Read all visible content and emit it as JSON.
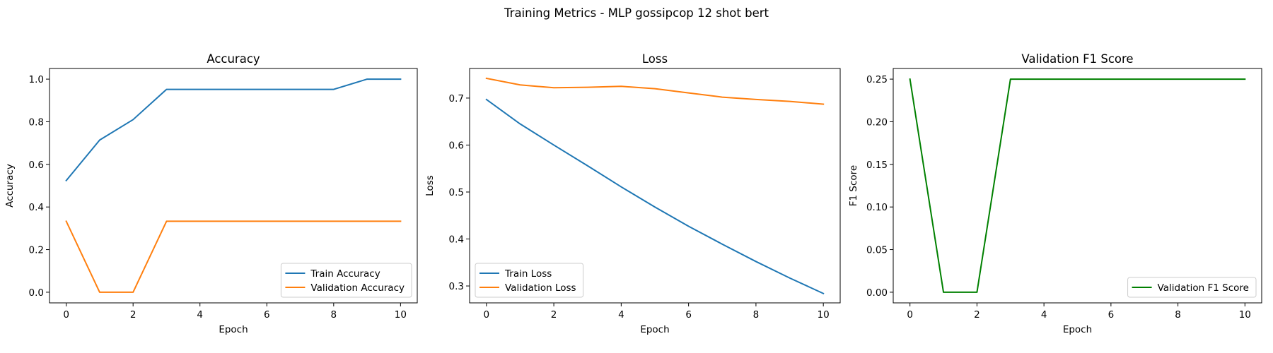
{
  "figure": {
    "title": "Training Metrics - MLP gossipcop 12 shot bert"
  },
  "chart_data": [
    {
      "type": "line",
      "title": "Accuracy",
      "xlabel": "Epoch",
      "ylabel": "Accuracy",
      "x": [
        0,
        1,
        2,
        3,
        4,
        5,
        6,
        7,
        8,
        9,
        10
      ],
      "xlim": [
        -0.5,
        10.5
      ],
      "ylim": [
        -0.05,
        1.05
      ],
      "xticks": [
        0,
        2,
        4,
        6,
        8,
        10
      ],
      "xtick_labels": [
        "0",
        "2",
        "4",
        "6",
        "8",
        "10"
      ],
      "yticks": [
        0.0,
        0.2,
        0.4,
        0.6,
        0.8,
        1.0
      ],
      "ytick_labels": [
        "0.0",
        "0.2",
        "0.4",
        "0.6",
        "0.8",
        "1.0"
      ],
      "legend_position": "bottom-right",
      "grid": false,
      "series": [
        {
          "name": "Train Accuracy",
          "color": "#1f77b4",
          "values": [
            0.524,
            0.714,
            0.81,
            0.952,
            0.952,
            0.952,
            0.952,
            0.952,
            0.952,
            1.0,
            1.0
          ]
        },
        {
          "name": "Validation Accuracy",
          "color": "#ff7f0e",
          "values": [
            0.333,
            0.0,
            0.0,
            0.333,
            0.333,
            0.333,
            0.333,
            0.333,
            0.333,
            0.333,
            0.333
          ]
        }
      ]
    },
    {
      "type": "line",
      "title": "Loss",
      "xlabel": "Epoch",
      "ylabel": "Loss",
      "x": [
        0,
        1,
        2,
        3,
        4,
        5,
        6,
        7,
        8,
        9,
        10
      ],
      "xlim": [
        -0.5,
        10.5
      ],
      "ylim": [
        0.264,
        0.763
      ],
      "xticks": [
        0,
        2,
        4,
        6,
        8,
        10
      ],
      "xtick_labels": [
        "0",
        "2",
        "4",
        "6",
        "8",
        "10"
      ],
      "yticks": [
        0.3,
        0.4,
        0.5,
        0.6,
        0.7
      ],
      "ytick_labels": [
        "0.3",
        "0.4",
        "0.5",
        "0.6",
        "0.7"
      ],
      "legend_position": "bottom-left",
      "grid": false,
      "series": [
        {
          "name": "Train Loss",
          "color": "#1f77b4",
          "values": [
            0.697,
            0.645,
            0.6,
            0.556,
            0.511,
            0.468,
            0.427,
            0.389,
            0.352,
            0.317,
            0.284
          ]
        },
        {
          "name": "Validation Loss",
          "color": "#ff7f0e",
          "values": [
            0.742,
            0.728,
            0.722,
            0.723,
            0.725,
            0.72,
            0.711,
            0.702,
            0.697,
            0.693,
            0.687
          ]
        }
      ]
    },
    {
      "type": "line",
      "title": "Validation F1 Score",
      "xlabel": "Epoch",
      "ylabel": "F1 Score",
      "x": [
        0,
        1,
        2,
        3,
        4,
        5,
        6,
        7,
        8,
        9,
        10
      ],
      "xlim": [
        -0.5,
        10.5
      ],
      "ylim": [
        -0.0125,
        0.2625
      ],
      "xticks": [
        0,
        2,
        4,
        6,
        8,
        10
      ],
      "xtick_labels": [
        "0",
        "2",
        "4",
        "6",
        "8",
        "10"
      ],
      "yticks": [
        0.0,
        0.05,
        0.1,
        0.15,
        0.2,
        0.25
      ],
      "ytick_labels": [
        "0.00",
        "0.05",
        "0.10",
        "0.15",
        "0.20",
        "0.25"
      ],
      "legend_position": "bottom-right",
      "grid": false,
      "series": [
        {
          "name": "Validation F1 Score",
          "color": "#008000",
          "values": [
            0.25,
            0.0,
            0.0,
            0.25,
            0.25,
            0.25,
            0.25,
            0.25,
            0.25,
            0.25,
            0.25
          ]
        }
      ]
    }
  ]
}
